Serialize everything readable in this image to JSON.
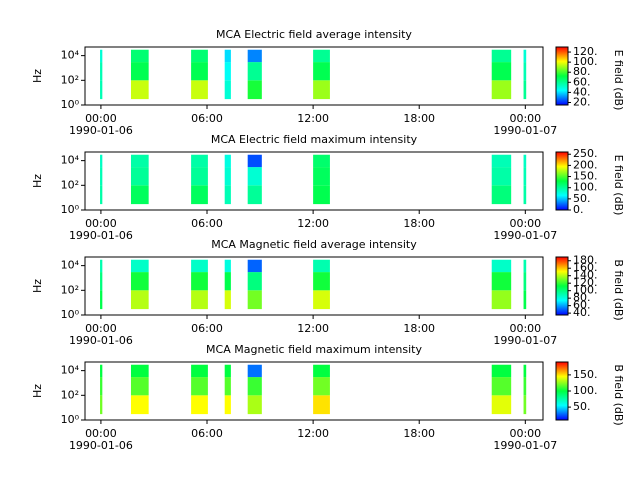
{
  "chart_data": [
    {
      "type": "spectrogram",
      "title": "MCA  Electric field average intensity",
      "ylabel": "Hz",
      "colorbar_label": "E field (dB)",
      "xlim": [
        -0.9,
        25
      ],
      "ylim": [
        1,
        50000
      ],
      "yscale": "log",
      "xticks": [
        {
          "value": 0,
          "label": "00:00",
          "sublabel": "1990-01-06"
        },
        {
          "value": 6,
          "label": "06:00"
        },
        {
          "value": 12,
          "label": "12:00"
        },
        {
          "value": 18,
          "label": "18:00"
        },
        {
          "value": 24,
          "label": "00:00",
          "sublabel": "1990-01-07"
        }
      ],
      "yticks": [
        {
          "value": 1,
          "label": "10⁰"
        },
        {
          "value": 100,
          "label": "10²"
        },
        {
          "value": 10000,
          "label": "10⁴"
        }
      ],
      "clim": [
        15,
        130
      ],
      "cticks": [
        {
          "value": 20,
          "label": "20."
        },
        {
          "value": 40,
          "label": "40."
        },
        {
          "value": 60,
          "label": "60."
        },
        {
          "value": 80,
          "label": "80."
        },
        {
          "value": 100,
          "label": "100."
        },
        {
          "value": 120,
          "label": "120."
        }
      ],
      "bands": [
        3,
        100,
        3000,
        30000
      ],
      "segments": [
        {
          "start": -0.05,
          "end": 0.08,
          "values": [
            55,
            55,
            50
          ]
        },
        {
          "start": 1.7,
          "end": 2.7,
          "values": [
            95,
            70,
            65
          ]
        },
        {
          "start": 5.1,
          "end": 6.05,
          "values": [
            95,
            70,
            65
          ]
        },
        {
          "start": 7.0,
          "end": 7.35,
          "values": [
            50,
            45,
            40
          ]
        },
        {
          "start": 8.3,
          "end": 9.1,
          "values": [
            75,
            60,
            30
          ]
        },
        {
          "start": 12.0,
          "end": 12.95,
          "values": [
            90,
            70,
            60
          ]
        },
        {
          "start": 22.1,
          "end": 23.2,
          "values": [
            90,
            70,
            60
          ]
        },
        {
          "start": 23.9,
          "end": 24.05,
          "values": [
            60,
            55,
            50
          ]
        }
      ]
    },
    {
      "type": "spectrogram",
      "title": "MCA  Electric field maximum intensity",
      "ylabel": "Hz",
      "colorbar_label": "E field (dB)",
      "xlim": [
        -0.9,
        25
      ],
      "ylim": [
        1,
        50000
      ],
      "yscale": "log",
      "xticks": [
        {
          "value": 0,
          "label": "00:00",
          "sublabel": "1990-01-06"
        },
        {
          "value": 6,
          "label": "06:00"
        },
        {
          "value": 12,
          "label": "12:00"
        },
        {
          "value": 18,
          "label": "18:00"
        },
        {
          "value": 24,
          "label": "00:00",
          "sublabel": "1990-01-07"
        }
      ],
      "yticks": [
        {
          "value": 1,
          "label": "10⁰"
        },
        {
          "value": 100,
          "label": "10²"
        },
        {
          "value": 10000,
          "label": "10⁴"
        }
      ],
      "clim": [
        0,
        260
      ],
      "cticks": [
        {
          "value": 0,
          "label": "0."
        },
        {
          "value": 50,
          "label": "50."
        },
        {
          "value": 100,
          "label": "100."
        },
        {
          "value": 150,
          "label": "150."
        },
        {
          "value": 200,
          "label": "200."
        },
        {
          "value": 250,
          "label": "250."
        }
      ],
      "bands": [
        3,
        100,
        3000,
        30000
      ],
      "segments": [
        {
          "start": -0.05,
          "end": 0.08,
          "values": [
            95,
            90,
            85
          ]
        },
        {
          "start": 1.7,
          "end": 2.7,
          "values": [
            120,
            100,
            95
          ]
        },
        {
          "start": 5.1,
          "end": 6.05,
          "values": [
            120,
            100,
            95
          ]
        },
        {
          "start": 7.0,
          "end": 7.35,
          "values": [
            90,
            80,
            75
          ]
        },
        {
          "start": 8.3,
          "end": 9.1,
          "values": [
            100,
            80,
            20
          ]
        },
        {
          "start": 12.0,
          "end": 12.95,
          "values": [
            125,
            120,
            115
          ]
        },
        {
          "start": 22.1,
          "end": 23.2,
          "values": [
            110,
            95,
            90
          ]
        },
        {
          "start": 23.9,
          "end": 24.05,
          "values": [
            95,
            90,
            85
          ]
        }
      ]
    },
    {
      "type": "spectrogram",
      "title": "MCA  Magnetic field average intensity",
      "ylabel": "Hz",
      "colorbar_label": "B field (dB)",
      "xlim": [
        -0.9,
        25
      ],
      "ylim": [
        1,
        50000
      ],
      "yscale": "log",
      "xticks": [
        {
          "value": 0,
          "label": "00:00",
          "sublabel": "1990-01-06"
        },
        {
          "value": 6,
          "label": "06:00"
        },
        {
          "value": 12,
          "label": "12:00"
        },
        {
          "value": 18,
          "label": "18:00"
        },
        {
          "value": 24,
          "label": "00:00",
          "sublabel": "1990-01-07"
        }
      ],
      "yticks": [
        {
          "value": 1,
          "label": "10⁰"
        },
        {
          "value": 100,
          "label": "10²"
        },
        {
          "value": 10000,
          "label": "10⁴"
        }
      ],
      "clim": [
        35,
        190
      ],
      "cticks": [
        {
          "value": 40,
          "label": "40."
        },
        {
          "value": 60,
          "label": "60."
        },
        {
          "value": 80,
          "label": "80."
        },
        {
          "value": 100,
          "label": "100."
        },
        {
          "value": 120,
          "label": "120."
        },
        {
          "value": 140,
          "label": "140."
        },
        {
          "value": 160,
          "label": "160."
        },
        {
          "value": 180,
          "label": "180."
        }
      ],
      "bands": [
        3,
        100,
        3000,
        30000
      ],
      "segments": [
        {
          "start": -0.05,
          "end": 0.08,
          "values": [
            110,
            100,
            90
          ]
        },
        {
          "start": 1.7,
          "end": 2.7,
          "values": [
            140,
            115,
            85
          ]
        },
        {
          "start": 5.1,
          "end": 6.05,
          "values": [
            140,
            115,
            85
          ]
        },
        {
          "start": 7.0,
          "end": 7.35,
          "values": [
            145,
            110,
            80
          ]
        },
        {
          "start": 8.3,
          "end": 9.1,
          "values": [
            130,
            100,
            50
          ]
        },
        {
          "start": 12.0,
          "end": 12.95,
          "values": [
            145,
            115,
            90
          ]
        },
        {
          "start": 22.1,
          "end": 23.2,
          "values": [
            135,
            115,
            85
          ]
        },
        {
          "start": 23.9,
          "end": 24.05,
          "values": [
            110,
            100,
            90
          ]
        }
      ]
    },
    {
      "type": "spectrogram",
      "title": "MCA  Magnetic field maximum intensity",
      "ylabel": "Hz",
      "colorbar_label": "B field (dB)",
      "xlim": [
        -0.9,
        25
      ],
      "ylim": [
        1,
        50000
      ],
      "yscale": "log",
      "xticks": [
        {
          "value": 0,
          "label": "00:00",
          "sublabel": "1990-01-06"
        },
        {
          "value": 6,
          "label": "06:00"
        },
        {
          "value": 12,
          "label": "12:00"
        },
        {
          "value": 18,
          "label": "18:00"
        },
        {
          "value": 24,
          "label": "00:00",
          "sublabel": "1990-01-07"
        }
      ],
      "yticks": [
        {
          "value": 1,
          "label": "10⁰"
        },
        {
          "value": 100,
          "label": "10²"
        },
        {
          "value": 10000,
          "label": "10⁴"
        }
      ],
      "clim": [
        10,
        190
      ],
      "cticks": [
        {
          "value": 50,
          "label": "50."
        },
        {
          "value": 100,
          "label": "100."
        },
        {
          "value": 150,
          "label": "150."
        }
      ],
      "bands": [
        3,
        100,
        3000,
        30000
      ],
      "segments": [
        {
          "start": -0.05,
          "end": 0.08,
          "values": [
            120,
            110,
            100
          ]
        },
        {
          "start": 1.7,
          "end": 2.7,
          "values": [
            145,
            115,
            100
          ]
        },
        {
          "start": 5.1,
          "end": 6.05,
          "values": [
            145,
            115,
            100
          ]
        },
        {
          "start": 7.0,
          "end": 7.35,
          "values": [
            145,
            115,
            100
          ]
        },
        {
          "start": 8.3,
          "end": 9.1,
          "values": [
            130,
            110,
            30
          ]
        },
        {
          "start": 12.0,
          "end": 12.95,
          "values": [
            150,
            120,
            100
          ]
        },
        {
          "start": 22.1,
          "end": 23.2,
          "values": [
            140,
            115,
            100
          ]
        },
        {
          "start": 23.9,
          "end": 24.05,
          "values": [
            120,
            110,
            100
          ]
        }
      ]
    }
  ],
  "colormap": [
    "#0000ff",
    "#00ffff",
    "#00ff40",
    "#ffff00",
    "#ff0000"
  ]
}
